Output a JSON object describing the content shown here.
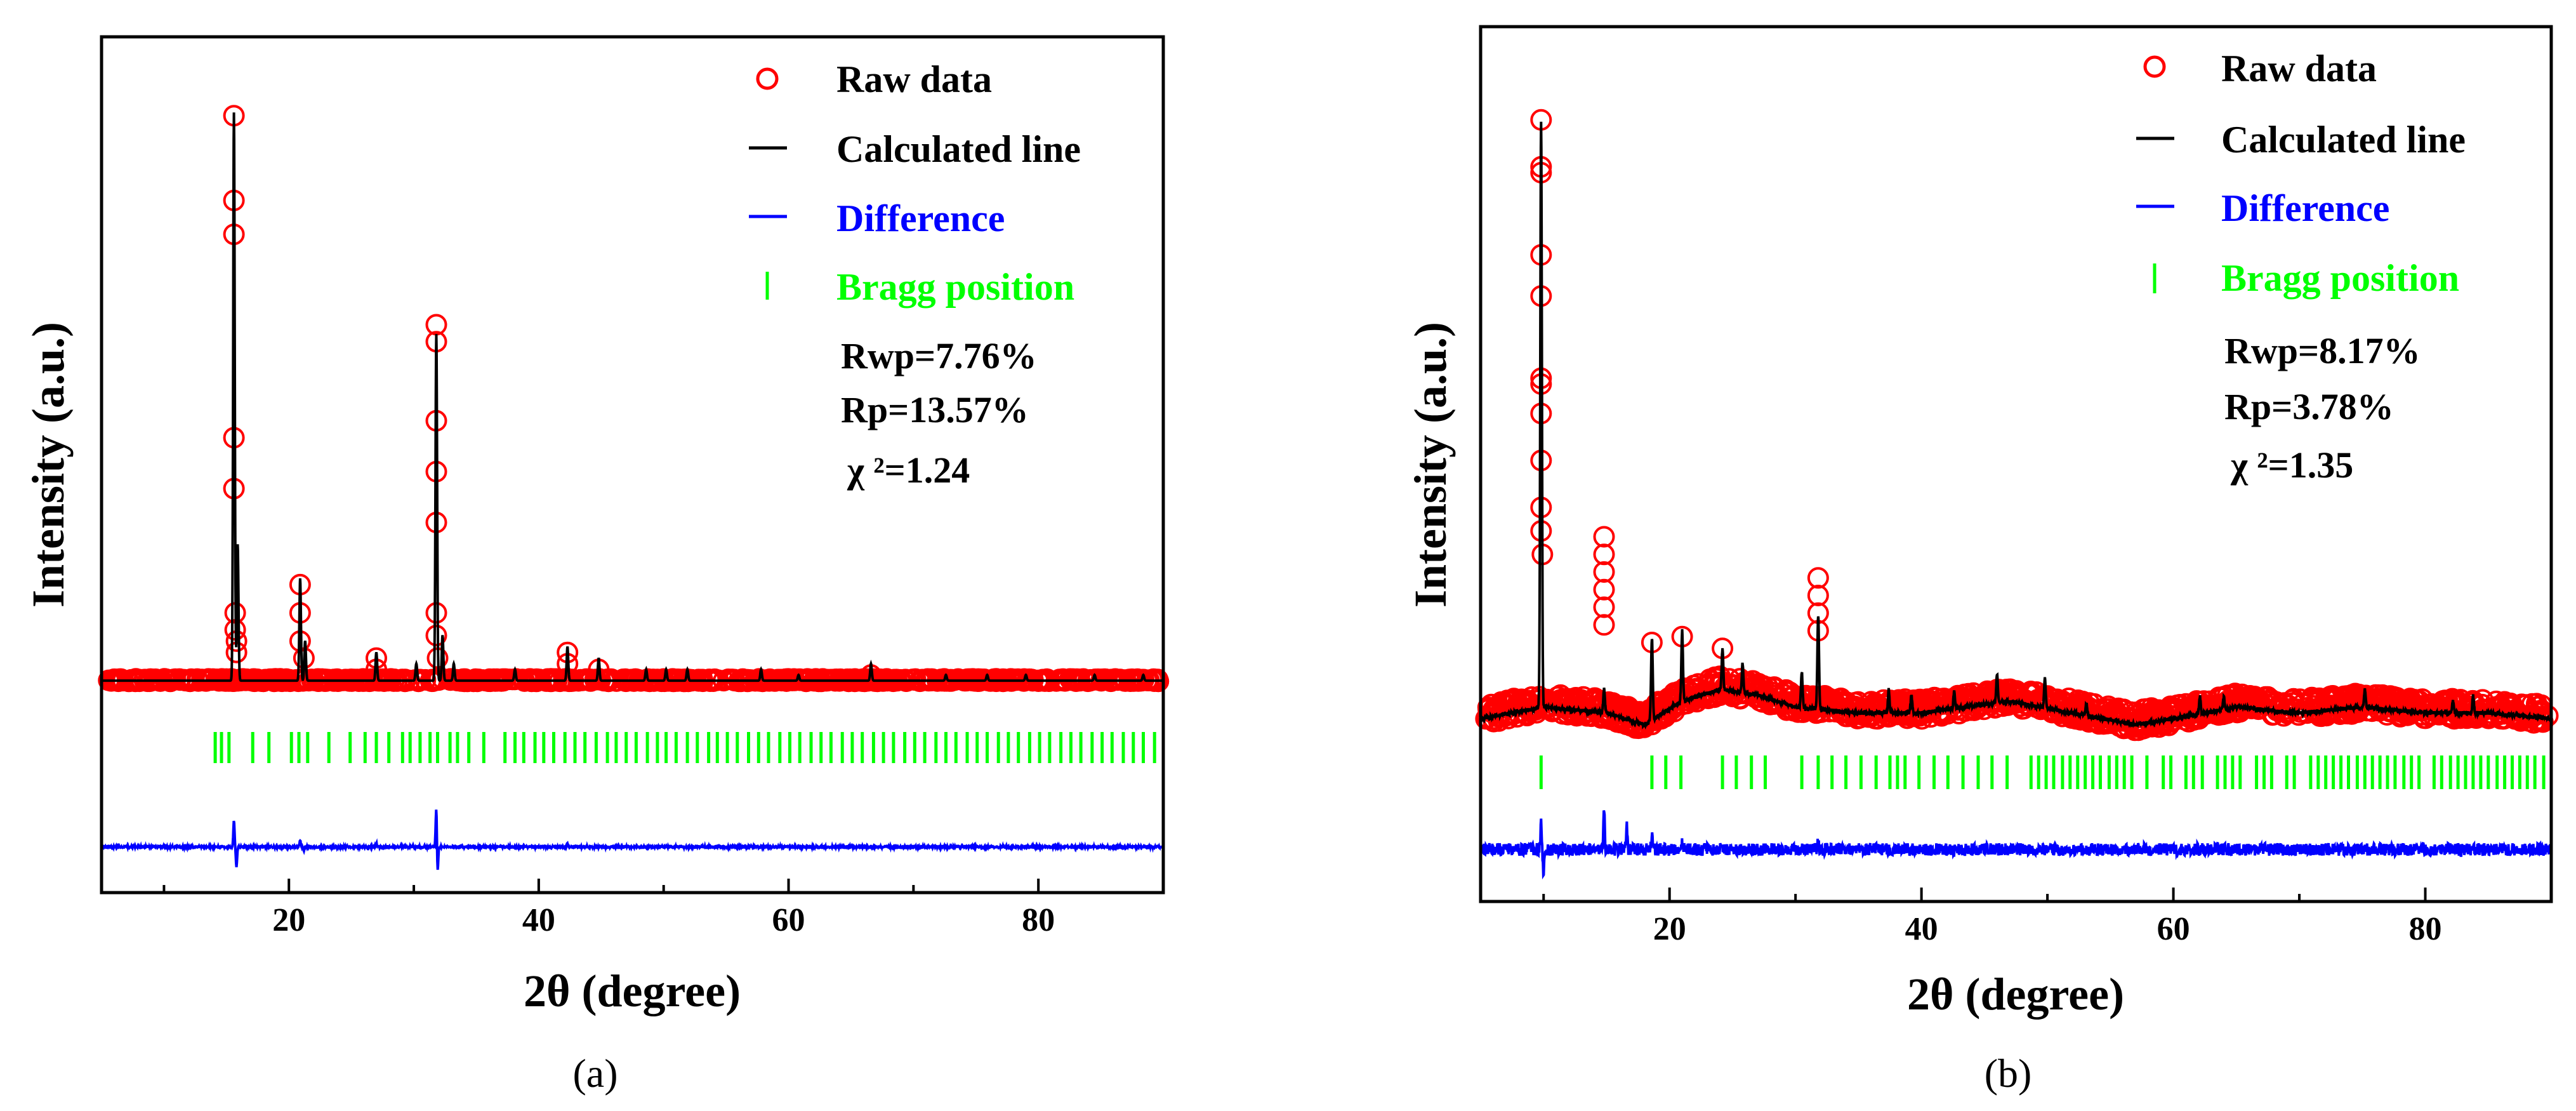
{
  "chart_data": [
    {
      "type": "line",
      "panel_label": "(a)",
      "xlabel": "2θ (degree)",
      "ylabel": "Intensity (a.u.)",
      "xlim": [
        5,
        90
      ],
      "x_ticks": [
        20,
        40,
        60,
        80
      ],
      "grid": false,
      "legend_position": "top-right",
      "legend": [
        "Raw data",
        "Calculated line",
        "Difference",
        "Bragg position"
      ],
      "colors": {
        "raw": "#ff0000",
        "calc": "#000000",
        "diff": "#0000ff",
        "bragg": "#00ff00"
      },
      "stats": {
        "rwp": "Rwp=7.76%",
        "rp": "Rp=13.57%",
        "chi": "χ ²=1.24"
      },
      "baseline": 2,
      "peaks": [
        {
          "x": 15.6,
          "h": 100
        },
        {
          "x": 15.9,
          "h": 24
        },
        {
          "x": 20.9,
          "h": 18
        },
        {
          "x": 21.3,
          "h": 7
        },
        {
          "x": 27.0,
          "h": 5
        },
        {
          "x": 30.2,
          "h": 3
        },
        {
          "x": 31.8,
          "h": 61
        },
        {
          "x": 32.3,
          "h": 8
        },
        {
          "x": 33.2,
          "h": 3
        },
        {
          "x": 38.1,
          "h": 2
        },
        {
          "x": 42.3,
          "h": 6
        },
        {
          "x": 44.8,
          "h": 4
        },
        {
          "x": 48.6,
          "h": 2
        },
        {
          "x": 50.2,
          "h": 2
        },
        {
          "x": 51.9,
          "h": 2
        },
        {
          "x": 57.8,
          "h": 2
        },
        {
          "x": 60.8,
          "h": 1
        },
        {
          "x": 66.6,
          "h": 3
        },
        {
          "x": 72.6,
          "h": 1
        },
        {
          "x": 75.9,
          "h": 1
        },
        {
          "x": 79.0,
          "h": 1
        },
        {
          "x": 84.5,
          "h": 1
        },
        {
          "x": 88.4,
          "h": 1
        }
      ],
      "raw_points": [
        {
          "x": 15.6,
          "y": 102
        },
        {
          "x": 15.6,
          "y": 87
        },
        {
          "x": 15.6,
          "y": 81
        },
        {
          "x": 15.6,
          "y": 45
        },
        {
          "x": 15.6,
          "y": 36
        },
        {
          "x": 15.7,
          "y": 14
        },
        {
          "x": 15.7,
          "y": 11
        },
        {
          "x": 15.8,
          "y": 9
        },
        {
          "x": 15.8,
          "y": 7
        },
        {
          "x": 20.9,
          "y": 19
        },
        {
          "x": 20.9,
          "y": 14
        },
        {
          "x": 20.9,
          "y": 9
        },
        {
          "x": 21.2,
          "y": 6
        },
        {
          "x": 27.0,
          "y": 6
        },
        {
          "x": 27.0,
          "y": 4
        },
        {
          "x": 31.8,
          "y": 65
        },
        {
          "x": 31.8,
          "y": 62
        },
        {
          "x": 31.8,
          "y": 48
        },
        {
          "x": 31.8,
          "y": 39
        },
        {
          "x": 31.8,
          "y": 30
        },
        {
          "x": 31.8,
          "y": 14
        },
        {
          "x": 31.8,
          "y": 10
        },
        {
          "x": 31.9,
          "y": 6
        },
        {
          "x": 42.3,
          "y": 7
        },
        {
          "x": 42.3,
          "y": 5
        },
        {
          "x": 44.8,
          "y": 4
        },
        {
          "x": 66.6,
          "y": 3
        }
      ],
      "bragg_positions": [
        14.1,
        14.6,
        15.2,
        17.1,
        18.4,
        20.2,
        20.8,
        21.5,
        23.2,
        24.9,
        26.1,
        27.0,
        28.0,
        29.1,
        29.7,
        30.5,
        31.3,
        31.9,
        32.9,
        33.5,
        34.4,
        35.6,
        37.3,
        38.1,
        38.8,
        39.7,
        40.4,
        41.2,
        42.1,
        42.9,
        43.7,
        44.6,
        45.5,
        46.2,
        47.0,
        47.8,
        48.7,
        49.5,
        50.2,
        51.0,
        51.9,
        52.7,
        53.6,
        54.3,
        55.1,
        55.9,
        56.8,
        57.6,
        58.4,
        59.3,
        60.1,
        60.9,
        61.8,
        62.6,
        63.4,
        64.3,
        65.1,
        65.9,
        66.8,
        67.6,
        68.4,
        69.3,
        70.1,
        70.9,
        71.8,
        72.6,
        73.4,
        74.3,
        75.1,
        75.9,
        76.8,
        77.6,
        78.4,
        79.3,
        80.1,
        80.9,
        81.8,
        82.6,
        83.4,
        84.3,
        85.1,
        85.9,
        86.8,
        87.6,
        88.4,
        89.3
      ],
      "difference_spikes": [
        {
          "x": 15.6,
          "d": 8
        },
        {
          "x": 15.8,
          "d": -6
        },
        {
          "x": 20.9,
          "d": 2
        },
        {
          "x": 21.2,
          "d": -1
        },
        {
          "x": 27.0,
          "d": 1
        },
        {
          "x": 31.8,
          "d": 12
        },
        {
          "x": 31.9,
          "d": -8
        },
        {
          "x": 42.3,
          "d": 1
        }
      ]
    },
    {
      "type": "line",
      "panel_label": "(b)",
      "xlabel": "2θ (degree)",
      "ylabel": "Intensity (a.u.)",
      "xlim": [
        5,
        90
      ],
      "x_ticks": [
        20,
        40,
        60,
        80
      ],
      "grid": false,
      "legend_position": "top-right",
      "legend": [
        "Raw data",
        "Calculated line",
        "Difference",
        "Bragg position"
      ],
      "colors": {
        "raw": "#ff0000",
        "calc": "#000000",
        "diff": "#0000ff",
        "bragg": "#00ff00"
      },
      "stats": {
        "rwp": "Rwp=8.17%",
        "rp": "Rp=3.78%",
        "chi": "χ ²=1.35"
      },
      "background": [
        {
          "x": 5,
          "y": 3
        },
        {
          "x": 10,
          "y": 5
        },
        {
          "x": 15,
          "y": 4
        },
        {
          "x": 18,
          "y": 2
        },
        {
          "x": 21,
          "y": 6
        },
        {
          "x": 24,
          "y": 8
        },
        {
          "x": 27,
          "y": 7
        },
        {
          "x": 30,
          "y": 5
        },
        {
          "x": 35,
          "y": 4
        },
        {
          "x": 40,
          "y": 4
        },
        {
          "x": 47,
          "y": 6
        },
        {
          "x": 52,
          "y": 4
        },
        {
          "x": 57,
          "y": 2
        },
        {
          "x": 60,
          "y": 3
        },
        {
          "x": 65,
          "y": 5
        },
        {
          "x": 70,
          "y": 4
        },
        {
          "x": 75,
          "y": 5
        },
        {
          "x": 80,
          "y": 4
        },
        {
          "x": 85,
          "y": 4
        },
        {
          "x": 90,
          "y": 3
        }
      ],
      "peaks": [
        {
          "x": 9.8,
          "h": 100
        },
        {
          "x": 14.8,
          "h": 4
        },
        {
          "x": 18.6,
          "h": 14
        },
        {
          "x": 21.0,
          "h": 12
        },
        {
          "x": 24.2,
          "h": 7
        },
        {
          "x": 25.8,
          "h": 5
        },
        {
          "x": 30.5,
          "h": 6
        },
        {
          "x": 31.8,
          "h": 16
        },
        {
          "x": 37.4,
          "h": 4
        },
        {
          "x": 39.2,
          "h": 3
        },
        {
          "x": 42.6,
          "h": 3
        },
        {
          "x": 46.0,
          "h": 5
        },
        {
          "x": 49.8,
          "h": 5
        },
        {
          "x": 53.1,
          "h": 2
        },
        {
          "x": 62.1,
          "h": 3
        },
        {
          "x": 64.0,
          "h": 2
        },
        {
          "x": 75.2,
          "h": 3
        },
        {
          "x": 82.2,
          "h": 2
        },
        {
          "x": 83.8,
          "h": 3
        }
      ],
      "raw_points": [
        {
          "x": 9.8,
          "y": 105
        },
        {
          "x": 9.8,
          "y": 97
        },
        {
          "x": 9.8,
          "y": 96
        },
        {
          "x": 9.8,
          "y": 82
        },
        {
          "x": 9.8,
          "y": 75
        },
        {
          "x": 9.8,
          "y": 61
        },
        {
          "x": 9.8,
          "y": 60
        },
        {
          "x": 9.8,
          "y": 55
        },
        {
          "x": 9.8,
          "y": 47
        },
        {
          "x": 9.8,
          "y": 39
        },
        {
          "x": 9.8,
          "y": 35
        },
        {
          "x": 9.9,
          "y": 31
        },
        {
          "x": 14.8,
          "y": 34
        },
        {
          "x": 14.8,
          "y": 31
        },
        {
          "x": 14.8,
          "y": 28
        },
        {
          "x": 14.8,
          "y": 25
        },
        {
          "x": 14.8,
          "y": 22
        },
        {
          "x": 14.8,
          "y": 19
        },
        {
          "x": 18.6,
          "y": 16
        },
        {
          "x": 21.0,
          "y": 17
        },
        {
          "x": 24.2,
          "y": 15
        },
        {
          "x": 31.8,
          "y": 27
        },
        {
          "x": 31.8,
          "y": 24
        },
        {
          "x": 31.8,
          "y": 21
        },
        {
          "x": 31.8,
          "y": 18
        }
      ],
      "bragg_positions": [
        9.8,
        18.6,
        19.7,
        20.9,
        24.2,
        25.3,
        26.5,
        27.6,
        30.5,
        31.8,
        32.9,
        34.0,
        35.2,
        36.4,
        37.5,
        38.1,
        38.7,
        39.8,
        41.0,
        42.1,
        43.3,
        44.5,
        45.6,
        46.8,
        48.7,
        49.3,
        49.9,
        50.5,
        51.2,
        51.8,
        52.4,
        53.0,
        53.6,
        54.2,
        54.9,
        55.5,
        56.1,
        56.7,
        57.9,
        59.2,
        59.8,
        61.0,
        61.6,
        62.3,
        63.5,
        64.1,
        64.7,
        65.3,
        66.6,
        67.2,
        67.8,
        69.0,
        69.6,
        70.9,
        71.5,
        72.1,
        72.7,
        73.3,
        73.9,
        74.6,
        75.2,
        75.8,
        76.4,
        77.0,
        77.6,
        78.3,
        78.9,
        79.5,
        80.7,
        81.3,
        82.0,
        82.6,
        83.2,
        83.8,
        84.4,
        85.0,
        85.7,
        86.3,
        86.9,
        87.5,
        88.1,
        88.7,
        89.4
      ],
      "difference_spikes": [
        {
          "x": 9.8,
          "d": 7
        },
        {
          "x": 10.0,
          "d": -7
        },
        {
          "x": 14.8,
          "d": 11
        },
        {
          "x": 16.6,
          "d": 6
        },
        {
          "x": 18.6,
          "d": 3
        },
        {
          "x": 21.0,
          "d": 2
        },
        {
          "x": 31.8,
          "d": 2
        }
      ]
    }
  ]
}
